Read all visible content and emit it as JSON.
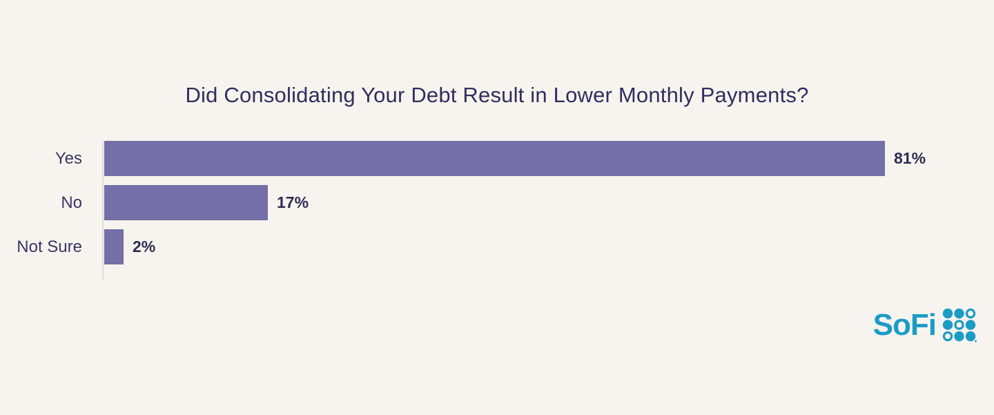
{
  "chart_data": {
    "type": "bar",
    "orientation": "horizontal",
    "title": "Did Consolidating Your Debt Result in Lower Monthly Payments?",
    "categories": [
      "Yes",
      "No",
      "Not Sure"
    ],
    "values": [
      81,
      17,
      2
    ],
    "value_labels": [
      "81%",
      "17%",
      "2%"
    ],
    "xlim": [
      0,
      81
    ],
    "grid": false,
    "legend": "none",
    "bar_color": "#746fa6",
    "title_color": "#312d5e",
    "label_color": "#3a3663",
    "value_label_color": "#2e2b55",
    "background_color": "#f7f4ef",
    "axis_line_color": "#dddad4"
  },
  "branding": {
    "logo_text": "SoFi",
    "logo_color": "#1b9cc6",
    "dot_grid_pattern": [
      [
        1,
        1,
        0
      ],
      [
        1,
        0,
        1
      ],
      [
        0,
        1,
        1
      ]
    ]
  }
}
